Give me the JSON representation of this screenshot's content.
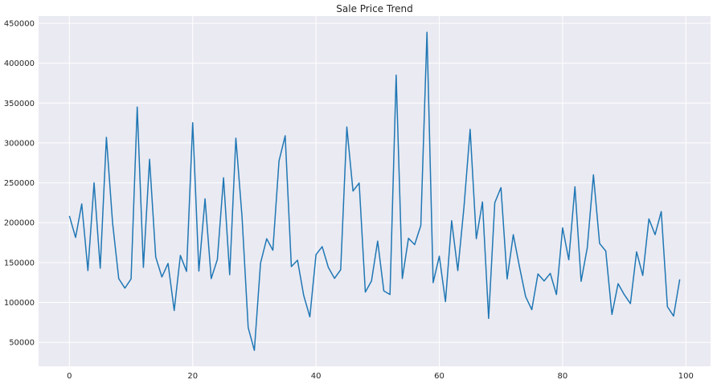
{
  "chart_data": {
    "type": "line",
    "title": "Sale Price Trend",
    "xlabel": "",
    "ylabel": "",
    "xlim": [
      -5,
      104
    ],
    "ylim": [
      20000,
      459000
    ],
    "x_ticks": [
      0,
      20,
      40,
      60,
      80,
      100
    ],
    "x_tick_labels": [
      "0",
      "20",
      "40",
      "60",
      "80",
      "100"
    ],
    "y_ticks": [
      50000,
      100000,
      150000,
      200000,
      250000,
      300000,
      350000,
      400000,
      450000
    ],
    "y_tick_labels": [
      "50000",
      "100000",
      "150000",
      "200000",
      "250000",
      "300000",
      "350000",
      "400000",
      "450000"
    ],
    "grid": true,
    "colors": {
      "background": "#eaeaf2",
      "grid": "#ffffff",
      "line": "#1f77b4"
    },
    "series": [
      {
        "x": [
          0,
          1,
          2,
          3,
          4,
          5,
          6,
          7,
          8,
          9,
          10,
          11,
          12,
          13,
          14,
          15,
          16,
          17,
          18,
          19,
          20,
          21,
          22,
          23,
          24,
          25,
          26,
          27,
          28,
          29,
          30,
          31,
          32,
          33,
          34,
          35,
          36,
          37,
          38,
          39,
          40,
          41,
          42,
          43,
          44,
          45,
          46,
          47,
          48,
          49,
          50,
          51,
          52,
          53,
          54,
          55,
          56,
          57,
          58,
          59,
          60,
          61,
          62,
          63,
          64,
          65,
          66,
          67,
          68,
          69,
          70,
          71,
          72,
          73,
          74,
          75,
          76,
          77,
          78,
          79,
          80,
          81,
          82,
          83,
          84,
          85,
          86,
          87,
          88,
          89,
          90,
          91,
          92,
          93,
          94,
          95,
          96,
          97,
          98,
          99
        ],
        "values": [
          208500,
          181500,
          223500,
          140000,
          250000,
          143000,
          307000,
          200000,
          129900,
          118000,
          129500,
          345000,
          144000,
          279500,
          157000,
          132000,
          149000,
          90000,
          159000,
          139000,
          325300,
          139400,
          230000,
          129900,
          154000,
          256300,
          134800,
          306000,
          207500,
          68500,
          40000,
          149350,
          179900,
          165500,
          277500,
          309000,
          145000,
          153000,
          109000,
          82000,
          160000,
          170000,
          144000,
          130250,
          141000,
          319900,
          239686,
          249700,
          113000,
          127000,
          177000,
          114500,
          110000,
          385000,
          130000,
          180500,
          172500,
          196500,
          438780,
          124900,
          158000,
          101000,
          202500,
          140000,
          219500,
          317000,
          180000,
          226000,
          80000,
          225000,
          244000,
          129500,
          185000,
          144900,
          107400,
          91000,
          135750,
          127000,
          136500,
          110000,
          193500,
          153500,
          245000,
          126500,
          168500,
          260000,
          174000,
          164500,
          85000,
          123600,
          109900,
          98600,
          163500,
          133900,
          204750,
          185000,
          214000,
          94750,
          83000,
          128950
        ]
      }
    ]
  }
}
